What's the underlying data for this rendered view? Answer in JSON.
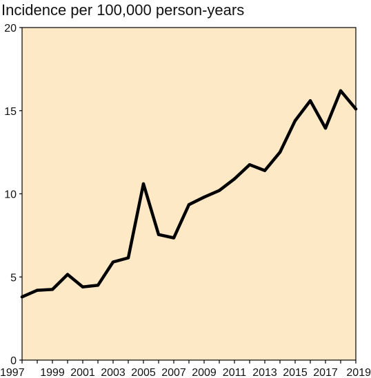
{
  "chart_data": {
    "type": "line",
    "title": "Incidence per 100,000 person-years",
    "xlabel": "",
    "ylabel": "",
    "x": [
      1997,
      1998,
      1999,
      2000,
      2001,
      2002,
      2003,
      2004,
      2005,
      2006,
      2007,
      2008,
      2009,
      2010,
      2011,
      2012,
      2013,
      2014,
      2015,
      2016,
      2017,
      2018,
      2019
    ],
    "series": [
      {
        "values": [
          3.8,
          4.2,
          4.25,
          5.15,
          4.4,
          4.5,
          5.9,
          6.15,
          10.6,
          7.55,
          7.35,
          9.35,
          9.8,
          10.2,
          10.9,
          11.75,
          11.4,
          12.5,
          14.4,
          15.6,
          13.95,
          16.2,
          15.1
        ]
      }
    ],
    "xlim": [
      1997,
      2019
    ],
    "ylim": [
      0,
      20
    ],
    "x_tick_labels": [
      "1997",
      "1999",
      "2001",
      "2003",
      "2005",
      "2007",
      "2009",
      "2011",
      "2013",
      "2015",
      "2017",
      "2019"
    ],
    "y_tick_labels": [
      "0",
      "5",
      "10",
      "15",
      "20"
    ],
    "y_ticks": [
      0,
      5,
      10,
      15,
      20
    ],
    "grid": false,
    "legend": false,
    "colors": {
      "plot_background": "#fde9c6",
      "line": "#000000",
      "axis": "#000000"
    }
  }
}
